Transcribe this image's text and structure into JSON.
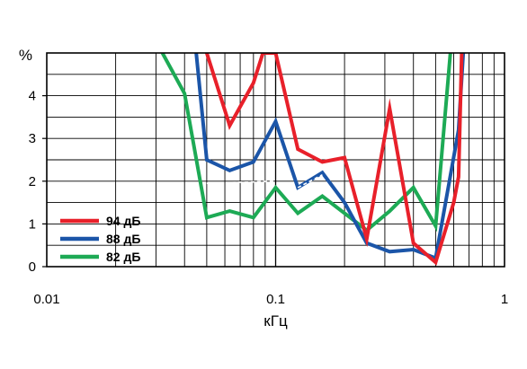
{
  "chart_data": {
    "type": "line",
    "xlabel": "кГц",
    "ylabel": "%",
    "xscale": "log",
    "xlim": [
      0.01,
      1
    ],
    "ylim": [
      0,
      5
    ],
    "grid": true,
    "legend_position": "bottom-left",
    "x_ticks": [
      {
        "value": 0.01,
        "label": "0.01"
      },
      {
        "value": 0.1,
        "label": "0.1"
      },
      {
        "value": 1,
        "label": "1"
      }
    ],
    "y_ticks": [
      {
        "value": 0,
        "label": "0"
      },
      {
        "value": 1,
        "label": "1"
      },
      {
        "value": 2,
        "label": "2"
      },
      {
        "value": 3,
        "label": "3"
      },
      {
        "value": 4,
        "label": "4"
      }
    ],
    "series": [
      {
        "name": "94 дБ",
        "color": "#e8202a",
        "x": [
          0.05,
          0.063,
          0.08,
          0.088,
          0.1,
          0.125,
          0.16,
          0.2,
          0.25,
          0.315,
          0.4,
          0.5,
          0.6,
          0.63,
          0.65
        ],
        "y": [
          5.0,
          3.3,
          4.3,
          5.0,
          5.0,
          2.75,
          2.45,
          2.55,
          0.65,
          3.7,
          0.55,
          0.1,
          1.5,
          2.1,
          5.0
        ]
      },
      {
        "name": "88 дБ",
        "color": "#1b55a8",
        "x": [
          0.045,
          0.05,
          0.063,
          0.08,
          0.1,
          0.125,
          0.16,
          0.2,
          0.25,
          0.315,
          0.4,
          0.5,
          0.63,
          0.66
        ],
        "y": [
          5.0,
          2.5,
          2.25,
          2.45,
          3.4,
          1.85,
          2.2,
          1.5,
          0.55,
          0.35,
          0.4,
          0.2,
          3.2,
          5.0
        ]
      },
      {
        "name": "82 дБ",
        "color": "#1daa55",
        "x": [
          0.032,
          0.04,
          0.05,
          0.063,
          0.08,
          0.1,
          0.125,
          0.16,
          0.2,
          0.25,
          0.315,
          0.4,
          0.5,
          0.58
        ],
        "y": [
          5.0,
          4.05,
          1.15,
          1.3,
          1.15,
          1.85,
          1.25,
          1.65,
          1.25,
          0.85,
          1.3,
          1.85,
          0.95,
          5.0
        ]
      }
    ],
    "dashed_segments": [
      {
        "color": "#ffffff",
        "x": [
          0.05,
          0.1
        ],
        "y": [
          1.95,
          2.0
        ]
      },
      {
        "color": "#ffffff",
        "x": [
          0.125,
          0.16
        ],
        "y": [
          1.85,
          2.15
        ]
      }
    ]
  }
}
